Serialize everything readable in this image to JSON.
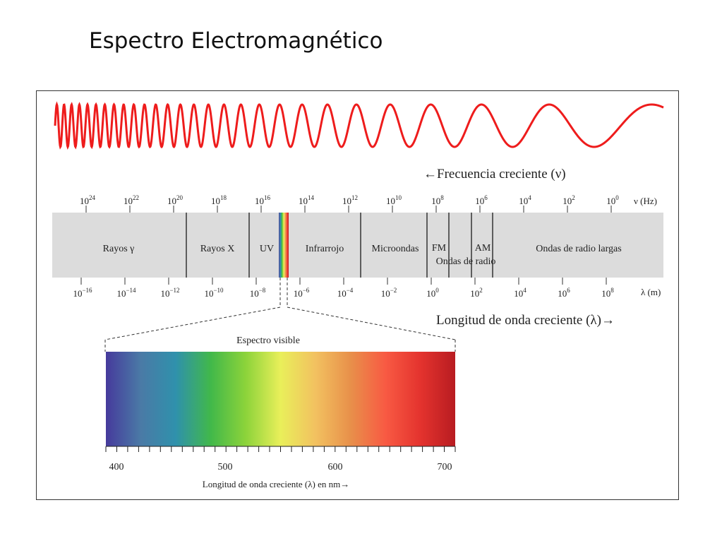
{
  "slide": {
    "title": "Espectro Electromagnético"
  },
  "colors": {
    "wave": "#ee1c1c",
    "band": "#dcdcdc",
    "visible_gradient": [
      "#463a9c",
      "#4a7aa6",
      "#2f91ac",
      "#41b84a",
      "#8cd33a",
      "#e9ef5a",
      "#f2c160",
      "#e8904a",
      "#f85a43",
      "#e4332e",
      "#b81c21"
    ]
  },
  "frequency": {
    "label": "←Frecuencia creciente (ν)",
    "unit": "ν (Hz)",
    "ticks": [
      {
        "base": "10",
        "exp": "24"
      },
      {
        "base": "10",
        "exp": "22"
      },
      {
        "base": "10",
        "exp": "20"
      },
      {
        "base": "10",
        "exp": "18"
      },
      {
        "base": "10",
        "exp": "16"
      },
      {
        "base": "10",
        "exp": "14"
      },
      {
        "base": "10",
        "exp": "12"
      },
      {
        "base": "10",
        "exp": "10"
      },
      {
        "base": "10",
        "exp": "8"
      },
      {
        "base": "10",
        "exp": "6"
      },
      {
        "base": "10",
        "exp": "4"
      },
      {
        "base": "10",
        "exp": "2"
      },
      {
        "base": "10",
        "exp": "0"
      }
    ]
  },
  "wavelength": {
    "label": "Longitud de onda creciente (λ)→",
    "unit": "λ (m)",
    "ticks": [
      {
        "base": "10",
        "exp": "−16"
      },
      {
        "base": "10",
        "exp": "−14"
      },
      {
        "base": "10",
        "exp": "−12"
      },
      {
        "base": "10",
        "exp": "−10"
      },
      {
        "base": "10",
        "exp": "−8"
      },
      {
        "base": "10",
        "exp": "−6"
      },
      {
        "base": "10",
        "exp": "−4"
      },
      {
        "base": "10",
        "exp": "−2"
      },
      {
        "base": "10",
        "exp": "0"
      },
      {
        "base": "10",
        "exp": "2"
      },
      {
        "base": "10",
        "exp": "4"
      },
      {
        "base": "10",
        "exp": "6"
      },
      {
        "base": "10",
        "exp": "8"
      }
    ]
  },
  "regions": {
    "gamma": "Rayos γ",
    "xray": "Rayos X",
    "uv": "UV",
    "infrared": "Infrarrojo",
    "microwave": "Microondas",
    "fm": "FM",
    "am": "AM",
    "radio": "Ondas de radio",
    "long_radio": "Ondas de radio largas"
  },
  "visible": {
    "title": "Espectro visible",
    "axis_label": "Longitud de onda creciente (λ) en nm→",
    "tick_labels": [
      "400",
      "500",
      "600",
      "700"
    ]
  }
}
